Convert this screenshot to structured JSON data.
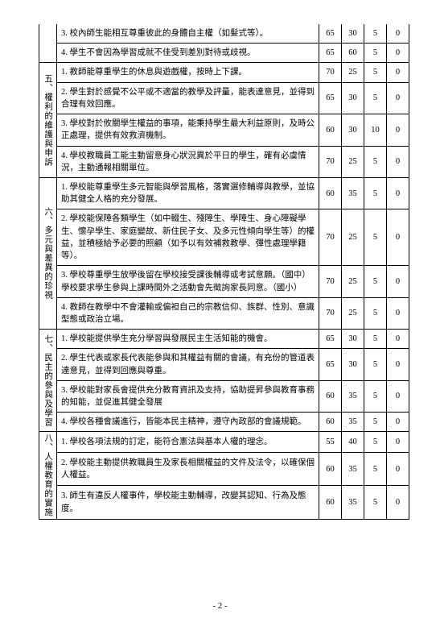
{
  "page_number": "- 2 -",
  "orphan_rows": [
    {
      "desc": "3. 校內師生能相互尊重彼此的身體自主權（如髮式等）。",
      "c1": "65",
      "c2": "30",
      "c3": "5",
      "c4": "0"
    },
    {
      "desc": "4. 學生不會因為學習成就不佳受到差別對待或歧視。",
      "c1": "65",
      "c2": "60",
      "c3": "5",
      "c4": "0"
    }
  ],
  "sections": [
    {
      "label": "五、權利的維護與申訴",
      "rows": [
        {
          "desc": "1. 教師能尊重學生的休息與遊戲權，按時上下課。",
          "c1": "70",
          "c2": "25",
          "c3": "5",
          "c4": "0"
        },
        {
          "desc": "2. 學生對於感覺不公平或不適當的教學及評量，能表達意見，並得到合理有效回應。",
          "c1": "65",
          "c2": "30",
          "c3": "5",
          "c4": "0"
        },
        {
          "desc": "3. 學校對於攸關學生權益的事項，能秉持學生最大利益原則，及時公正處理，提供有效救濟機制。",
          "c1": "60",
          "c2": "30",
          "c3": "10",
          "c4": "0"
        },
        {
          "desc": "4. 學校教職員工能主動留意身心狀況異於平日的學生，確有必虞情況，主動通報相關單位。",
          "c1": "70",
          "c2": "25",
          "c3": "5",
          "c4": "0"
        }
      ]
    },
    {
      "label": "六、多元與差異的珍視",
      "rows": [
        {
          "desc": "1. 學校能尊重學生多元智能與學習風格，落實選修輔導與教學，並協助其健全人格的充分發展。",
          "c1": "60",
          "c2": "35",
          "c3": "5",
          "c4": "0"
        },
        {
          "desc": "2. 學校能保障各類學生（如中輟生、殘障生、學障生、身心障礙學生、懷孕學生、家庭變故、新住民子女、及多元性傾向學生等）的權益，並積極給予必要的照顧（如予以有效補救教學、彈性處理學籍等）。",
          "c1": "70",
          "c2": "25",
          "c3": "5",
          "c4": "0"
        },
        {
          "desc": "3. 學校尊重學生放學後留在學校接受課後輔導或考試意願。（國中）\n學校要求學生參與上課時間外之活動會先徵詢家長同意。（國小）",
          "c1": "70",
          "c2": "25",
          "c3": "5",
          "c4": "0"
        },
        {
          "desc": "4. 教師在教學中不會灌輸或偏袒自己的宗教信仰、族群、性別、意識型態或政治立場。",
          "c1": "70",
          "c2": "25",
          "c3": "5",
          "c4": "0"
        }
      ]
    },
    {
      "label": "七、民主的參與及學習",
      "rows": [
        {
          "desc": "1. 學校能提供學生充分學習與發展民主生活知能的機會。",
          "c1": "65",
          "c2": "30",
          "c3": "5",
          "c4": "0"
        },
        {
          "desc": "2. 學生代表或家長代表能參與和其權益有關的會議，有充份的管道表達意見，並得到回應與尊重。",
          "c1": "65",
          "c2": "30",
          "c3": "5",
          "c4": "0"
        },
        {
          "desc": "3. 學校能對家長會提供充分教育資訊及支持，協助提昇參與教育事務的知能，並促進其健全發展",
          "c1": "60",
          "c2": "35",
          "c3": "5",
          "c4": "0"
        },
        {
          "desc": "4. 學校各種會議進行，皆能本民主精神，遵守內政部的會議規範。",
          "c1": "60",
          "c2": "35",
          "c3": "5",
          "c4": "0"
        }
      ]
    },
    {
      "label": "八、人權教育的實施",
      "rows": [
        {
          "desc": "1. 學校各項法規的訂定，能符合憲法與基本人權的理念。",
          "c1": "55",
          "c2": "40",
          "c3": "5",
          "c4": "0"
        },
        {
          "desc": "2. 學校能主動提供教職員生及家長相關權益的文件及法令，以確保個人權益。",
          "c1": "60",
          "c2": "35",
          "c3": "5",
          "c4": "0"
        },
        {
          "desc": "3. 師生有違反人權事件，學校能主動輔導，改變其認知、行為及態度。",
          "c1": "60",
          "c2": "35",
          "c3": "5",
          "c4": "0"
        }
      ]
    }
  ]
}
